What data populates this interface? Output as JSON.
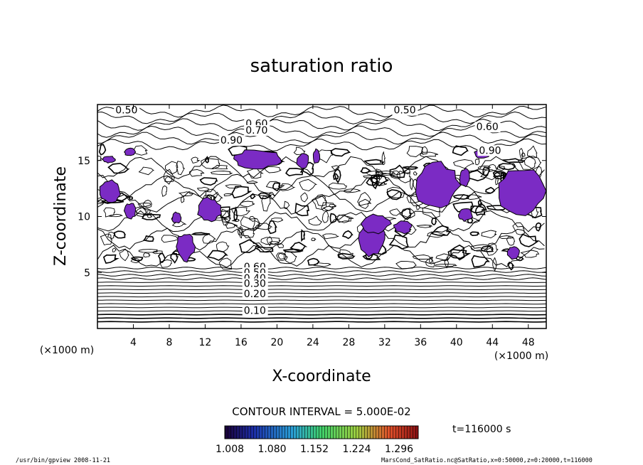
{
  "chart_data": {
    "type": "contour",
    "title": "saturation ratio",
    "xlabel": "X-coordinate",
    "ylabel": "Z-coordinate",
    "xunit": "(×1000 m)",
    "yunit": "(×1000 m)",
    "xlim": [
      0,
      50
    ],
    "ylim": [
      0,
      20
    ],
    "xticks": [
      4,
      8,
      12,
      16,
      20,
      24,
      28,
      32,
      36,
      40,
      44,
      48
    ],
    "yticks": [
      5,
      10,
      15
    ],
    "contour_interval_text": "CONTOUR INTERVAL = 5.000E-02",
    "contour_labels": [
      {
        "text": "0.50",
        "x": 2.0,
        "z": 19.2
      },
      {
        "text": "0.50",
        "x": 33.0,
        "z": 19.2
      },
      {
        "text": "0.60",
        "x": 16.5,
        "z": 18.0
      },
      {
        "text": "0.70",
        "x": 16.5,
        "z": 17.4
      },
      {
        "text": "0.60",
        "x": 42.2,
        "z": 17.7
      },
      {
        "text": "0.90",
        "x": 13.7,
        "z": 16.5
      },
      {
        "text": "0.90",
        "x": 42.5,
        "z": 15.6
      },
      {
        "text": "0.60",
        "x": 16.3,
        "z": 5.2
      },
      {
        "text": "0.50",
        "x": 16.3,
        "z": 4.7
      },
      {
        "text": "0.40",
        "x": 16.3,
        "z": 4.2
      },
      {
        "text": "0.30",
        "x": 16.3,
        "z": 3.7
      },
      {
        "text": "0.20",
        "x": 16.3,
        "z": 2.8
      },
      {
        "text": "0.10",
        "x": 16.3,
        "z": 1.3
      }
    ],
    "supersaturated_regions": [
      {
        "x": [
          0.2,
          2.6
        ],
        "z": [
          11.3,
          13.3
        ]
      },
      {
        "x": [
          0.6,
          2.0
        ],
        "z": [
          14.8,
          15.4
        ]
      },
      {
        "x": [
          3.0,
          4.2
        ],
        "z": [
          15.4,
          16.1
        ]
      },
      {
        "x": [
          3.0,
          4.3
        ],
        "z": [
          9.8,
          11.2
        ]
      },
      {
        "x": [
          8.3,
          9.3
        ],
        "z": [
          9.4,
          10.4
        ]
      },
      {
        "x": [
          8.8,
          10.8
        ],
        "z": [
          6.0,
          8.6
        ]
      },
      {
        "x": [
          11.2,
          13.8
        ],
        "z": [
          9.5,
          11.7
        ]
      },
      {
        "x": [
          15.2,
          20.6
        ],
        "z": [
          14.3,
          16.0
        ]
      },
      {
        "x": [
          22.2,
          23.6
        ],
        "z": [
          14.3,
          15.6
        ]
      },
      {
        "x": [
          24.0,
          24.8
        ],
        "z": [
          14.7,
          16.0
        ]
      },
      {
        "x": [
          29.0,
          32.0
        ],
        "z": [
          6.5,
          9.5
        ]
      },
      {
        "x": [
          29.4,
          32.6
        ],
        "z": [
          8.5,
          10.2
        ]
      },
      {
        "x": [
          33.0,
          35.0
        ],
        "z": [
          8.5,
          9.6
        ]
      },
      {
        "x": [
          35.2,
          40.4
        ],
        "z": [
          10.8,
          14.8
        ]
      },
      {
        "x": [
          40.3,
          41.5
        ],
        "z": [
          12.7,
          14.3
        ]
      },
      {
        "x": [
          42.0,
          43.8
        ],
        "z": [
          15.2,
          16.0
        ]
      },
      {
        "x": [
          44.3,
          50.0
        ],
        "z": [
          10.2,
          14.4
        ]
      },
      {
        "x": [
          40.2,
          41.8
        ],
        "z": [
          9.6,
          10.7
        ]
      },
      {
        "x": [
          45.6,
          47.0
        ],
        "z": [
          6.2,
          7.3
        ]
      }
    ],
    "colorbar": {
      "labels": [
        "1.008",
        "1.080",
        "1.152",
        "1.224",
        "1.296"
      ],
      "min": 1.008,
      "max": 1.296,
      "colormap": "rainbow"
    },
    "fill_color": "#7b2bc4",
    "time_label": "t=116000 s"
  },
  "footer": {
    "left": "/usr/bin/gpview   2008-11-21",
    "right": "MarsCond_SatRatio.nc@SatRatio,x=0:50000,z=0:20000,t=116000"
  }
}
